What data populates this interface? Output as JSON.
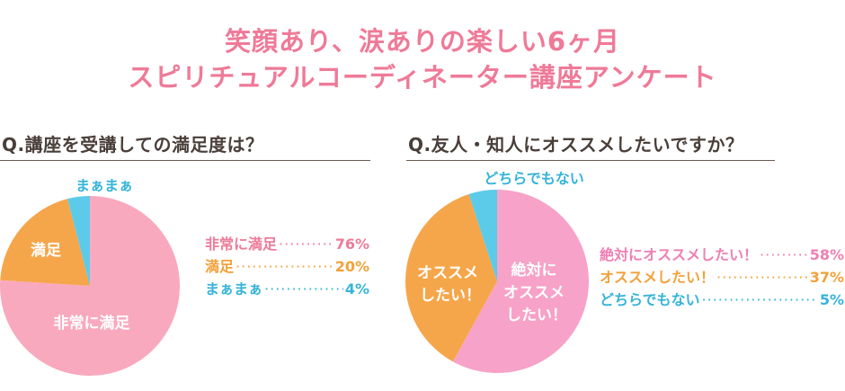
{
  "title": {
    "line1": "笑顔あり、涙ありの楽しい6ヶ月",
    "line2": "スピリチュアルコーディネーター講座アンケート"
  },
  "colors": {
    "title": "#ef7a98",
    "pink": "#f9a9be",
    "pink_text": "#ef7a98",
    "orange": "#f6a64a",
    "orange_text": "#f3a13a",
    "blue": "#5ccbe9",
    "blue_text": "#36b4d8",
    "magenta": "#f7a2c8",
    "magenta_text": "#ee7fb3"
  },
  "chart_data": [
    {
      "type": "pie",
      "title": "Q.講座を受講しての満足度は？",
      "slices": [
        {
          "label": "非常に満足",
          "legend_label": "非常に満足",
          "value": 76,
          "display": "76%",
          "color": "#f9a9be",
          "text_color": "#ef7a98"
        },
        {
          "label": "満足",
          "legend_label": "満足",
          "value": 20,
          "display": "20%",
          "color": "#f6a64a",
          "text_color": "#f3a13a"
        },
        {
          "label": "まぁまぁ",
          "legend_label": "まぁまぁ",
          "value": 4,
          "display": "4%",
          "color": "#5ccbe9",
          "text_color": "#36b4d8"
        }
      ]
    },
    {
      "type": "pie",
      "title": "Q.友人・知人にオススメしたいですか？",
      "slices": [
        {
          "label_lines": [
            "絶対に",
            "オススメ",
            "したい！"
          ],
          "legend_label": "絶対にオススメしたい！",
          "value": 58,
          "display": "58%",
          "color": "#f7a2c8",
          "text_color": "#ee7fb3"
        },
        {
          "label_lines": [
            "オススメ",
            "したい！"
          ],
          "legend_label": "オススメしたい！",
          "value": 37,
          "display": "37%",
          "color": "#f6a64a",
          "text_color": "#f3a13a"
        },
        {
          "label_lines": [
            "どちらでもない"
          ],
          "legend_label": "どちらでもない",
          "value": 5,
          "display": "5%",
          "color": "#5ccbe9",
          "text_color": "#36b4d8"
        }
      ]
    }
  ]
}
